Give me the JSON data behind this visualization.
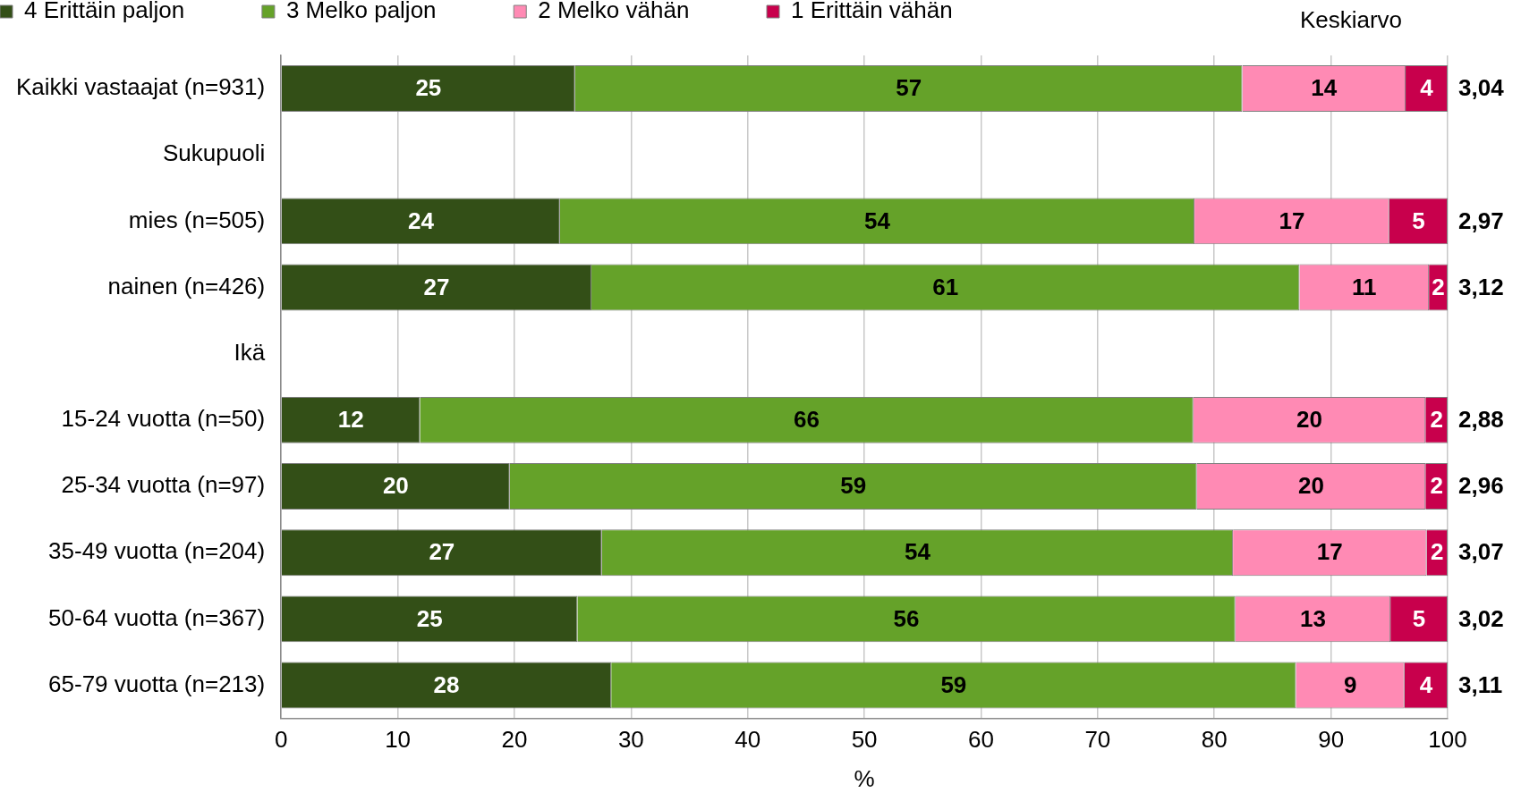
{
  "chart_data": {
    "type": "bar",
    "orientation": "horizontal",
    "stacked": true,
    "xlabel": "%",
    "categories": [
      "Kaikki vastaajat (n=931)",
      "Sukupuoli",
      "mies (n=505)",
      "nainen (n=426)",
      "Ikä",
      "15-24 vuotta (n=50)",
      "25-34 vuotta (n=97)",
      "35-49 vuotta (n=204)",
      "50-64 vuotta (n=367)",
      "65-79 vuotta (n=213)"
    ],
    "series": [
      {
        "name": "4 Erittäin paljon",
        "color": "#334f17",
        "values": [
          25.2,
          null,
          23.9,
          26.6,
          null,
          11.9,
          19.6,
          27.5,
          25.4,
          28.3
        ],
        "value_labels": [
          "25",
          null,
          "24",
          "27",
          null,
          "12",
          "20",
          "27",
          "25",
          "28"
        ]
      },
      {
        "name": "3 Melko paljon",
        "color": "#65a229",
        "values": [
          57.2,
          null,
          54.4,
          60.7,
          null,
          66.3,
          58.9,
          54.1,
          56.4,
          58.7
        ],
        "value_labels": [
          "57",
          null,
          "54",
          "61",
          null,
          "66",
          "59",
          "54",
          "56",
          "59"
        ]
      },
      {
        "name": "2 Melko vähän",
        "color": "#ff8ab4",
        "values": [
          14.0,
          null,
          16.7,
          11.1,
          null,
          19.9,
          19.6,
          16.6,
          13.3,
          9.3
        ],
        "value_labels": [
          "14",
          null,
          "17",
          "11",
          null,
          "20",
          "20",
          "17",
          "13",
          "9"
        ]
      },
      {
        "name": "1 Erittäin vähän",
        "color": "#c8004c",
        "values": [
          3.6,
          null,
          5.0,
          1.6,
          null,
          1.9,
          1.9,
          1.8,
          4.9,
          3.7
        ],
        "value_labels": [
          "4",
          null,
          "5",
          "2",
          null,
          "2",
          "2",
          "2",
          "5",
          "4"
        ]
      }
    ],
    "xlim": [
      0,
      100
    ],
    "xticks": [
      0,
      10,
      20,
      30,
      40,
      50,
      60,
      70,
      80,
      90,
      100
    ],
    "grid": "x",
    "legend": "top",
    "annotations": [
      "Keskiarvo",
      "3,04",
      "2,97",
      "3,12",
      "2,88",
      "2,96",
      "3,07",
      "3,02",
      "3,11"
    ]
  }
}
